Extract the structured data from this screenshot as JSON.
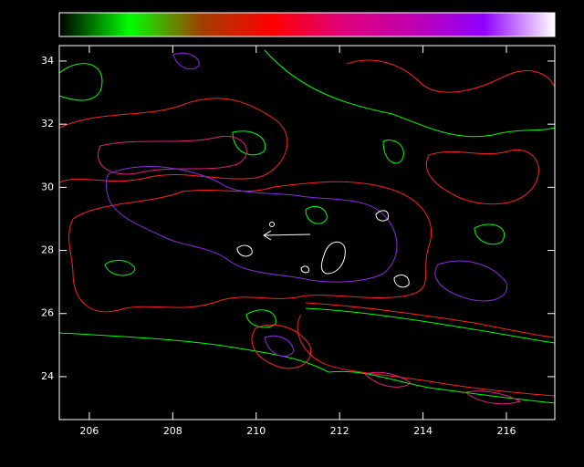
{
  "chart_data": {
    "type": "contour",
    "xlim": [
      205.28,
      217.16
    ],
    "ylim": [
      22.64,
      34.49
    ],
    "xticks": [
      206,
      208,
      210,
      212,
      214,
      216
    ],
    "yticks": [
      24,
      26,
      28,
      30,
      32,
      34
    ],
    "grid": false,
    "colorbar": [
      "#000000",
      "#00ff00",
      "#a04000",
      "#ff0000",
      "#e0007a",
      "#c000b0",
      "#9000ff",
      "#ffffff"
    ],
    "level_colors": [
      "#00ff00",
      "#ff2020",
      "#e02080",
      "#8a2be2",
      "#ffffff"
    ]
  }
}
